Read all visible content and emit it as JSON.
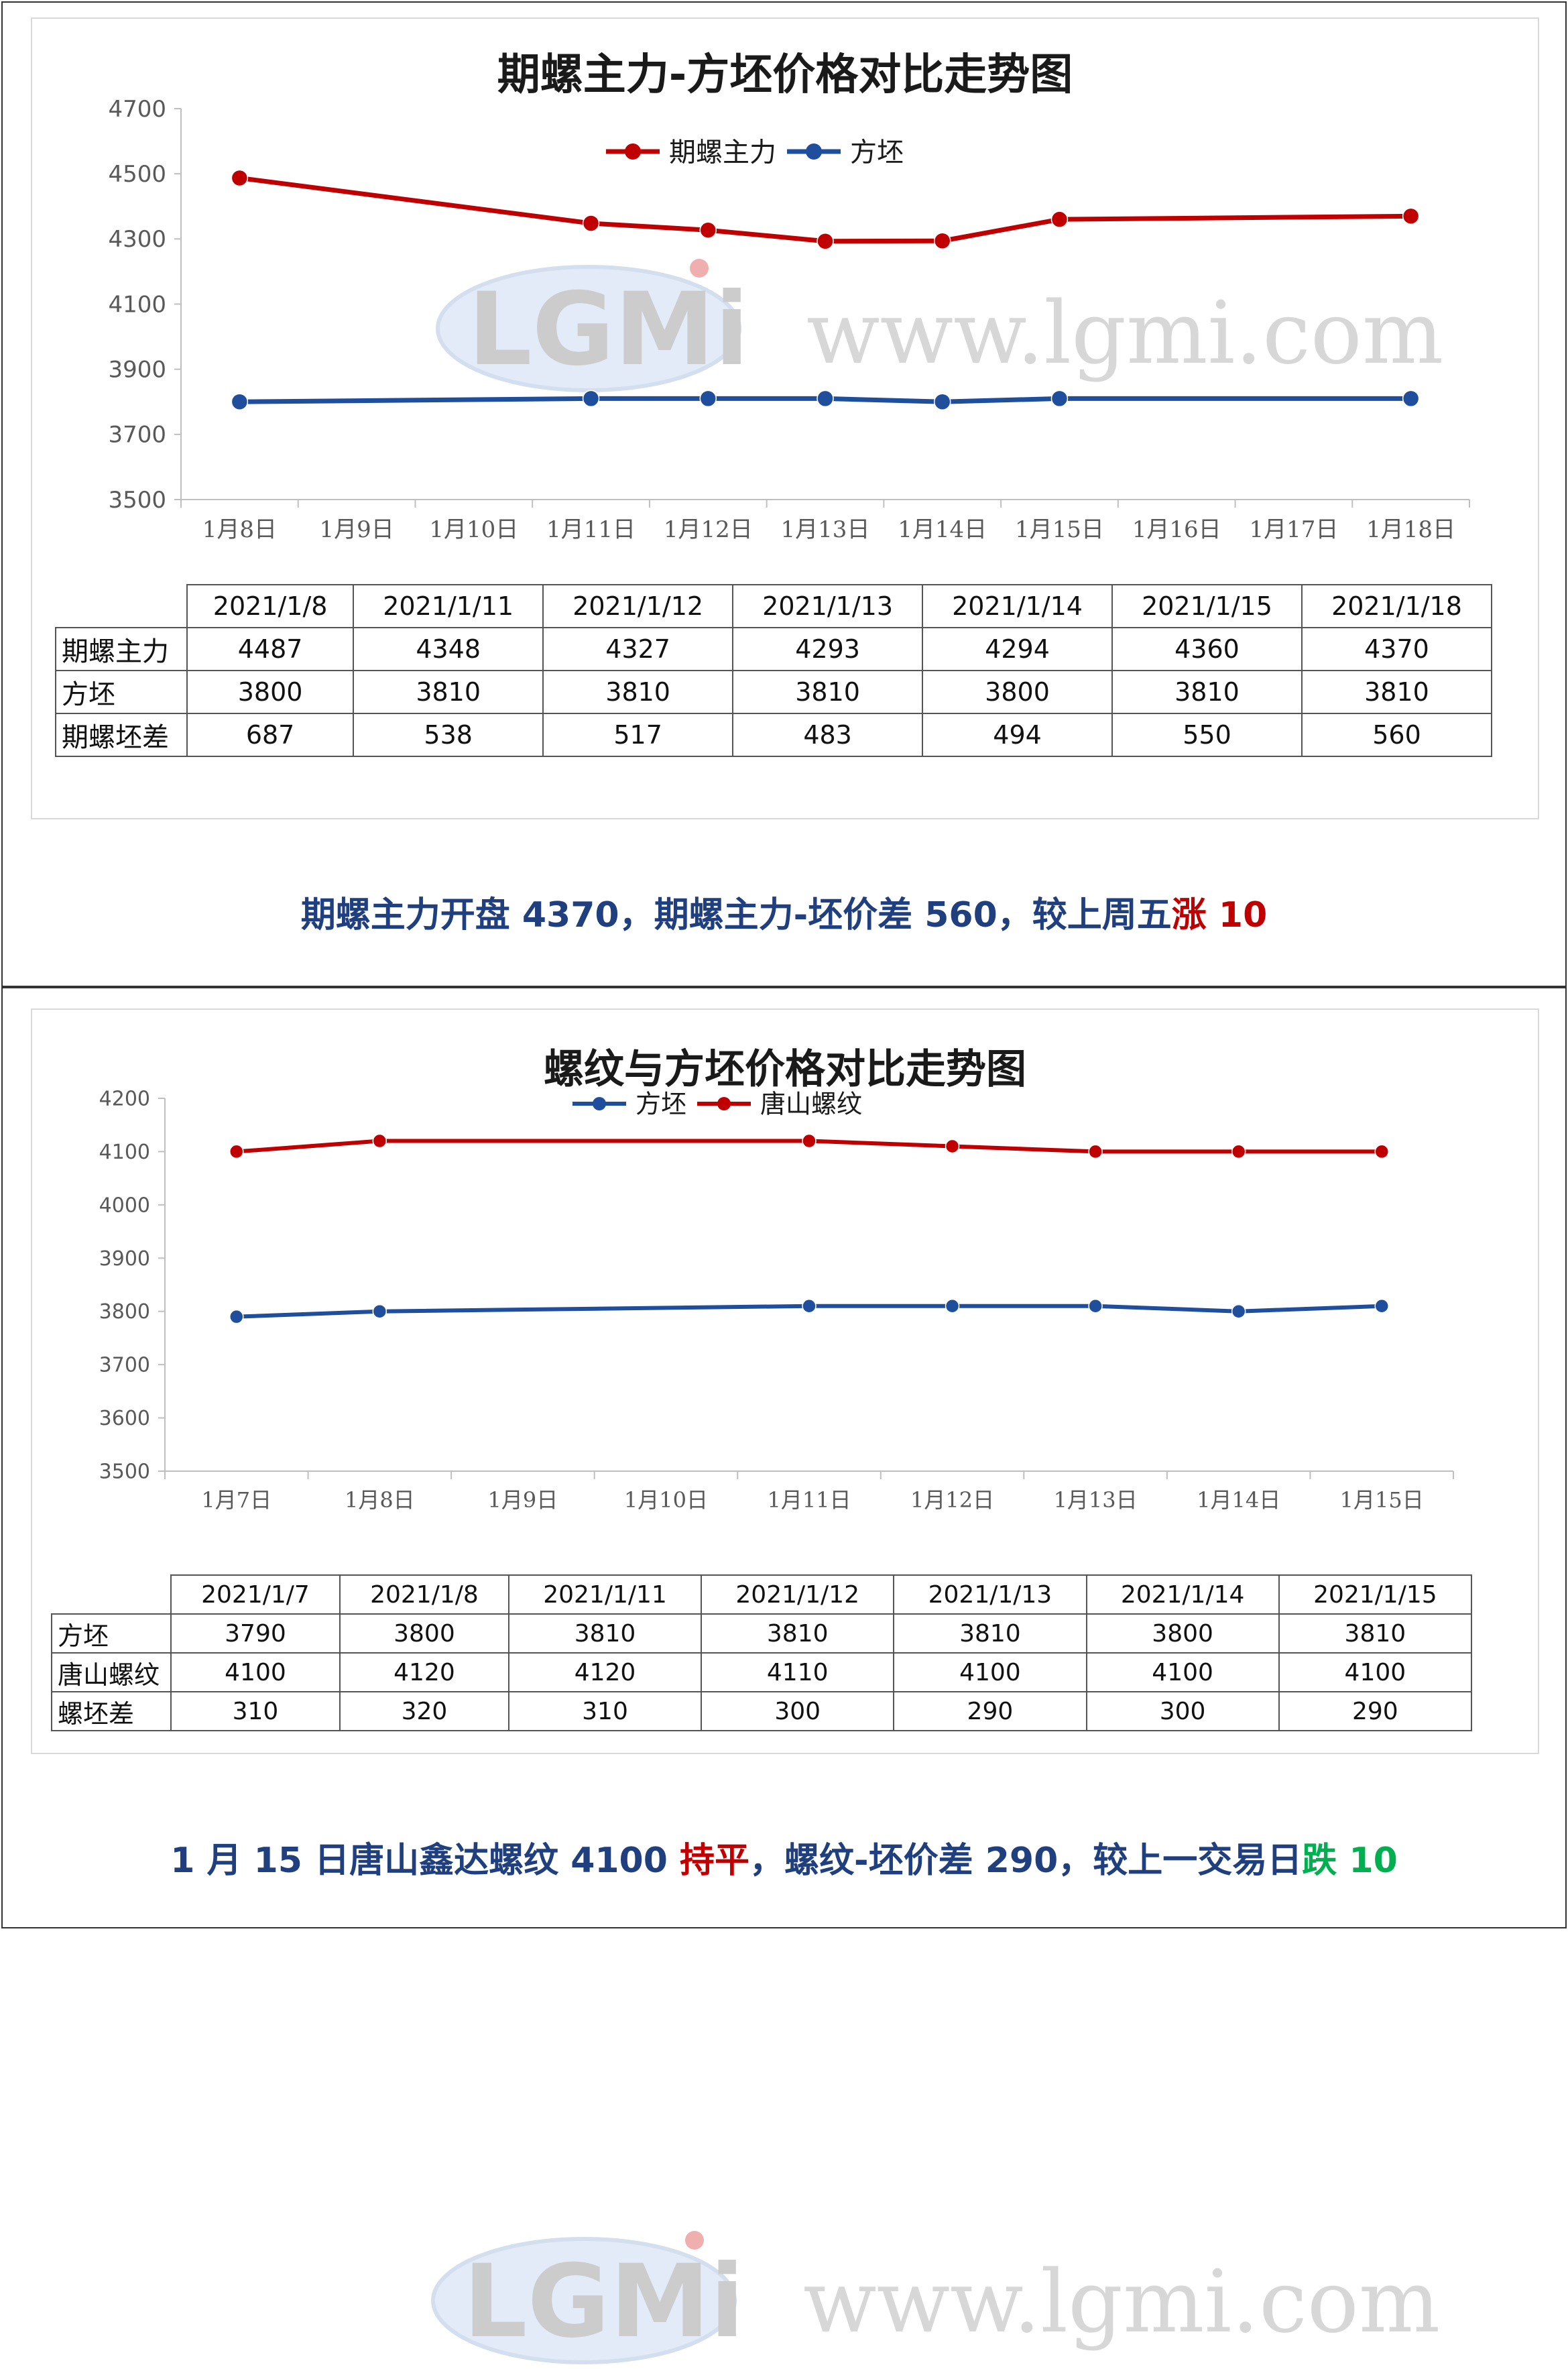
{
  "panel1": {
    "chart": {
      "title": "期螺主力-方坯价格对比走势图",
      "legend": [
        "期螺主力",
        "方坯"
      ],
      "x_labels": [
        "1月8日",
        "1月9日",
        "1月10日",
        "1月11日",
        "1月12日",
        "1月13日",
        "1月14日",
        "1月15日",
        "1月16日",
        "1月17日",
        "1月18日"
      ],
      "y_ticks": [
        "4700",
        "4500",
        "4300",
        "4100",
        "3900",
        "3700",
        "3500"
      ],
      "ylim": [
        3500,
        4700
      ]
    },
    "table": {
      "headers": [
        "2021/1/8",
        "2021/1/11",
        "2021/1/12",
        "2021/1/13",
        "2021/1/14",
        "2021/1/15",
        "2021/1/18"
      ],
      "rows": [
        {
          "label": "期螺主力",
          "values": [
            "4487",
            "4348",
            "4327",
            "4293",
            "4294",
            "4360",
            "4370"
          ]
        },
        {
          "label": "方坯",
          "values": [
            "3800",
            "3810",
            "3810",
            "3810",
            "3800",
            "3810",
            "3810"
          ]
        },
        {
          "label": "期螺坯差",
          "values": [
            "687",
            "538",
            "517",
            "483",
            "494",
            "550",
            "560"
          ]
        }
      ]
    },
    "summary": {
      "text_a": "期螺主力开盘 4370，期螺主力-坯价差 560，较上周五",
      "text_b": "涨 10"
    }
  },
  "panel2": {
    "chart": {
      "title": "螺纹与方坯价格对比走势图",
      "legend": [
        "方坯",
        "唐山螺纹"
      ],
      "x_labels": [
        "1月7日",
        "1月8日",
        "1月9日",
        "1月10日",
        "1月11日",
        "1月12日",
        "1月13日",
        "1月14日",
        "1月15日"
      ],
      "y_ticks": [
        "4200",
        "4100",
        "4000",
        "3900",
        "3800",
        "3700",
        "3600",
        "3500"
      ],
      "ylim": [
        3500,
        4200
      ]
    },
    "table": {
      "headers": [
        "2021/1/7",
        "2021/1/8",
        "2021/1/11",
        "2021/1/12",
        "2021/1/13",
        "2021/1/14",
        "2021/1/15"
      ],
      "rows": [
        {
          "label": "方坯",
          "values": [
            "3790",
            "3800",
            "3810",
            "3810",
            "3810",
            "3800",
            "3810"
          ]
        },
        {
          "label": "唐山螺纹",
          "values": [
            "4100",
            "4120",
            "4120",
            "4110",
            "4100",
            "4100",
            "4100"
          ]
        },
        {
          "label": "螺坯差",
          "values": [
            "310",
            "320",
            "310",
            "300",
            "290",
            "300",
            "290"
          ]
        }
      ]
    },
    "summary": {
      "text_a": "1 月 15 日唐山鑫达螺纹 4100 ",
      "text_b": "持平",
      "text_c": "，螺纹-坯价差 290，较上一交易日",
      "text_d": "跌 10"
    }
  },
  "watermark": {
    "logo_text": "LGMi",
    "url_text": "www.lgmi.com"
  },
  "colors": {
    "red_series": "#c00000",
    "blue_series": "#1f4e9c",
    "summary_blue": "#1f3f7f",
    "up_red": "#c00000",
    "down_green": "#00b050"
  },
  "chart_data": [
    {
      "type": "line",
      "title": "期螺主力-方坯价格对比走势图",
      "categories": [
        "1月8日",
        "1月9日",
        "1月10日",
        "1月11日",
        "1月12日",
        "1月13日",
        "1月14日",
        "1月15日",
        "1月16日",
        "1月17日",
        "1月18日"
      ],
      "ylim": [
        3500,
        4700
      ],
      "legend_position": "top-center",
      "series": [
        {
          "name": "期螺主力",
          "color": "#c00000",
          "points": [
            [
              "1月8日",
              4487
            ],
            [
              "1月11日",
              4348
            ],
            [
              "1月12日",
              4327
            ],
            [
              "1月13日",
              4293
            ],
            [
              "1月14日",
              4294
            ],
            [
              "1月15日",
              4360
            ],
            [
              "1月18日",
              4370
            ]
          ]
        },
        {
          "name": "方坯",
          "color": "#1f4e9c",
          "points": [
            [
              "1月8日",
              3800
            ],
            [
              "1月11日",
              3810
            ],
            [
              "1月12日",
              3810
            ],
            [
              "1月13日",
              3810
            ],
            [
              "1月14日",
              3800
            ],
            [
              "1月15日",
              3810
            ],
            [
              "1月18日",
              3810
            ]
          ]
        }
      ]
    },
    {
      "type": "line",
      "title": "螺纹与方坯价格对比走势图",
      "categories": [
        "1月7日",
        "1月8日",
        "1月9日",
        "1月10日",
        "1月11日",
        "1月12日",
        "1月13日",
        "1月14日",
        "1月15日"
      ],
      "ylim": [
        3500,
        4200
      ],
      "legend_position": "top-center",
      "series": [
        {
          "name": "方坯",
          "color": "#1f4e9c",
          "points": [
            [
              "1月7日",
              3790
            ],
            [
              "1月8日",
              3800
            ],
            [
              "1月11日",
              3810
            ],
            [
              "1月12日",
              3810
            ],
            [
              "1月13日",
              3810
            ],
            [
              "1月14日",
              3800
            ],
            [
              "1月15日",
              3810
            ]
          ]
        },
        {
          "name": "唐山螺纹",
          "color": "#c00000",
          "points": [
            [
              "1月7日",
              4100
            ],
            [
              "1月8日",
              4120
            ],
            [
              "1月11日",
              4120
            ],
            [
              "1月12日",
              4110
            ],
            [
              "1月13日",
              4100
            ],
            [
              "1月14日",
              4100
            ],
            [
              "1月15日",
              4100
            ]
          ]
        }
      ]
    }
  ]
}
